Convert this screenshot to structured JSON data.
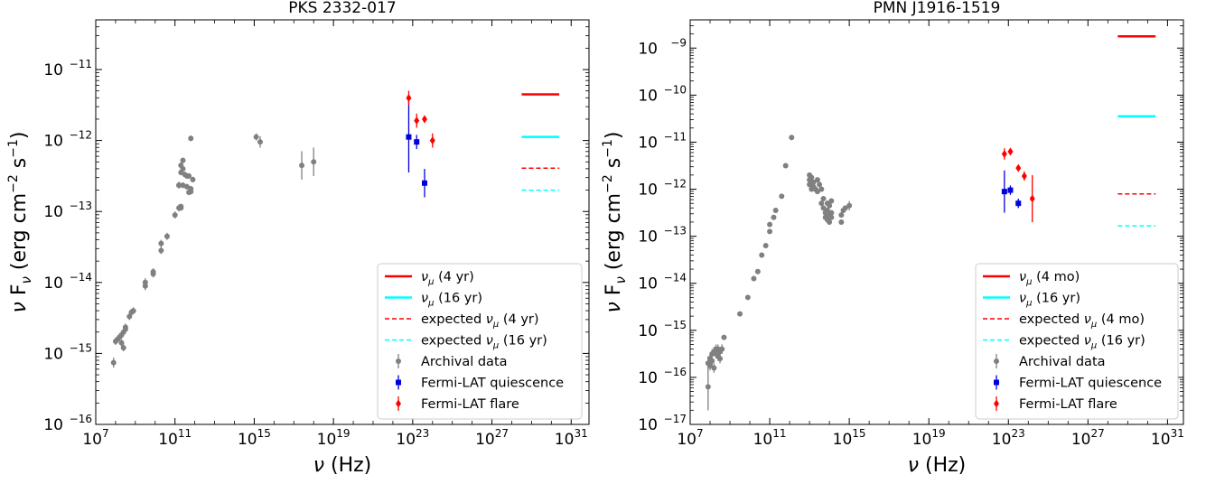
{
  "chart_data": [
    {
      "type": "scatter",
      "title": "PKS 2332-017",
      "xlabel": "ν (Hz)",
      "ylabel": "ν F_ν (erg cm^-2 s^-1)",
      "x_scale": "log",
      "y_scale": "log",
      "xlim_exp": [
        7,
        31.9
      ],
      "ylim_exp": [
        -16,
        -10.3
      ],
      "x_tick_exponents": [
        7,
        11,
        15,
        19,
        23,
        27,
        31
      ],
      "y_tick_exponents": [
        -16,
        -15,
        -14,
        -13,
        -12,
        -11
      ],
      "legend_position": "lower-right",
      "legend": [
        {
          "kind": "line",
          "color": "#ff0000",
          "dash": false,
          "pre": "",
          "nu": "ν",
          "sub": "μ",
          "post": " (4 yr)"
        },
        {
          "kind": "line",
          "color": "#00ffff",
          "dash": false,
          "pre": "",
          "nu": "ν",
          "sub": "μ",
          "post": " (16 yr)"
        },
        {
          "kind": "line",
          "color": "#ff0000",
          "dash": true,
          "pre": "expected ",
          "nu": "ν",
          "sub": "μ",
          "post": " (4 yr)"
        },
        {
          "kind": "line",
          "color": "#00ffff",
          "dash": true,
          "pre": "expected ",
          "nu": "ν",
          "sub": "μ",
          "post": " (16 yr)"
        },
        {
          "kind": "circle",
          "color": "#808080",
          "pre": "Archival data",
          "nu": "",
          "sub": "",
          "post": ""
        },
        {
          "kind": "square",
          "color": "#0000dd",
          "pre": "Fermi-LAT quiescence",
          "nu": "",
          "sub": "",
          "post": ""
        },
        {
          "kind": "diamond",
          "color": "#ff0000",
          "pre": "Fermi-LAT flare",
          "nu": "",
          "sub": "",
          "post": ""
        }
      ],
      "neutrino_levels": [
        {
          "name": "ν_μ (4 yr)",
          "logx_range": [
            28.5,
            30.4
          ],
          "logy": -11.35,
          "color": "#ff0000",
          "dash": false
        },
        {
          "name": "ν_μ (16 yr)",
          "logx_range": [
            28.5,
            30.4
          ],
          "logy": -11.95,
          "color": "#00ffff",
          "dash": false
        },
        {
          "name": "expected ν_μ (4 yr)",
          "logx_range": [
            28.5,
            30.4
          ],
          "logy": -12.39,
          "color": "#ff0000",
          "dash": true
        },
        {
          "name": "expected ν_μ (16 yr)",
          "logx_range": [
            28.5,
            30.4
          ],
          "logy": -12.7,
          "color": "#00ffff",
          "dash": true
        }
      ],
      "series": [
        {
          "name": "Archival data",
          "marker": "circle",
          "color": "#808080",
          "points": [
            [
              7.9,
              -15.13,
              0.07
            ],
            [
              8.0,
              -14.83,
              0.05
            ],
            [
              8.1,
              -14.8,
              0.05
            ],
            [
              8.2,
              -14.77,
              0.05
            ],
            [
              8.3,
              -14.74,
              0.05
            ],
            [
              8.3,
              -14.85,
              0.05
            ],
            [
              8.4,
              -14.7,
              0.05
            ],
            [
              8.5,
              -14.66,
              0.05
            ],
            [
              8.4,
              -14.92,
              0.05
            ],
            [
              8.5,
              -14.63,
              0.05
            ],
            [
              8.7,
              -14.48,
              0.05
            ],
            [
              8.9,
              -14.4,
              0.05
            ],
            [
              8.8,
              -14.42,
              0.05
            ],
            [
              9.5,
              -14.05,
              0.06
            ],
            [
              9.5,
              -14.0,
              0.06
            ],
            [
              9.9,
              -13.88,
              0.05
            ],
            [
              9.9,
              -13.85,
              0.05
            ],
            [
              10.3,
              -13.45,
              0.05
            ],
            [
              10.3,
              -13.55,
              0.05
            ],
            [
              10.6,
              -13.35,
              0.05
            ],
            [
              11.0,
              -13.05,
              0.05
            ],
            [
              11.2,
              -12.95,
              0.05
            ],
            [
              11.2,
              -12.63,
              0.05
            ],
            [
              11.3,
              -12.45,
              0.04
            ],
            [
              11.3,
              -12.35,
              0.04
            ],
            [
              11.4,
              -12.4,
              0.04
            ],
            [
              11.4,
              -12.28,
              0.04
            ],
            [
              11.5,
              -12.48,
              0.04
            ],
            [
              11.6,
              -12.5,
              0.04
            ],
            [
              11.7,
              -12.73,
              0.04
            ],
            [
              11.8,
              -12.68,
              0.04
            ],
            [
              11.2,
              -12.63,
              0.04
            ],
            [
              11.4,
              -12.63,
              0.04
            ],
            [
              11.6,
              -12.65,
              0.04
            ],
            [
              11.8,
              -12.72,
              0.04
            ],
            [
              11.3,
              -12.93,
              0.04
            ],
            [
              11.3,
              -12.95,
              0.04
            ],
            [
              11.8,
              -11.97,
              0.04
            ],
            [
              11.9,
              -12.55,
              0.04
            ],
            [
              11.7,
              -12.5,
              0.04
            ],
            [
              15.1,
              -11.95,
              0.05
            ],
            [
              15.3,
              -12.02,
              0.08
            ],
            [
              17.4,
              -12.35,
              0.2
            ],
            [
              18.0,
              -12.3,
              0.2
            ]
          ]
        },
        {
          "name": "Fermi-LAT quiescence",
          "marker": "square",
          "color": "#0000dd",
          "points": [
            [
              22.8,
              -11.95,
              0.5
            ],
            [
              23.2,
              -12.02,
              0.1
            ],
            [
              23.6,
              -12.6,
              0.2
            ]
          ]
        },
        {
          "name": "Fermi-LAT flare",
          "marker": "diamond",
          "color": "#ff0000",
          "points": [
            [
              22.8,
              -11.4,
              0.1
            ],
            [
              23.2,
              -11.72,
              0.1
            ],
            [
              23.6,
              -11.7,
              0.05
            ],
            [
              24.0,
              -12.0,
              0.1
            ]
          ]
        }
      ]
    },
    {
      "type": "scatter",
      "title": "PMN J1916-1519",
      "xlabel": "ν (Hz)",
      "ylabel": "ν F_ν (erg cm^-2 s^-1)",
      "x_scale": "log",
      "y_scale": "log",
      "xlim_exp": [
        7,
        31.8
      ],
      "ylim_exp": [
        -17,
        -8.4
      ],
      "x_tick_exponents": [
        7,
        11,
        15,
        19,
        23,
        27,
        31
      ],
      "y_tick_exponents": [
        -17,
        -16,
        -15,
        -14,
        -13,
        -12,
        -11,
        -10,
        -9
      ],
      "legend_position": "lower-right",
      "legend": [
        {
          "kind": "line",
          "color": "#ff0000",
          "dash": false,
          "pre": "",
          "nu": "ν",
          "sub": "μ",
          "post": " (4 mo)"
        },
        {
          "kind": "line",
          "color": "#00ffff",
          "dash": false,
          "pre": "",
          "nu": "ν",
          "sub": "μ",
          "post": " (16 yr)"
        },
        {
          "kind": "line",
          "color": "#ff0000",
          "dash": true,
          "pre": "expected ",
          "nu": "ν",
          "sub": "μ",
          "post": " (4 mo)"
        },
        {
          "kind": "line",
          "color": "#00ffff",
          "dash": true,
          "pre": "expected ",
          "nu": "ν",
          "sub": "μ",
          "post": " (16 yr)"
        },
        {
          "kind": "circle",
          "color": "#808080",
          "pre": "Archival data",
          "nu": "",
          "sub": "",
          "post": ""
        },
        {
          "kind": "square",
          "color": "#0000dd",
          "pre": "Fermi-LAT quiescence",
          "nu": "",
          "sub": "",
          "post": ""
        },
        {
          "kind": "diamond",
          "color": "#ff0000",
          "pre": "Fermi-LAT flare",
          "nu": "",
          "sub": "",
          "post": ""
        }
      ],
      "neutrino_levels": [
        {
          "name": "ν_μ (4 mo)",
          "logx_range": [
            28.5,
            30.4
          ],
          "logy": -8.75,
          "color": "#ff0000",
          "dash": false
        },
        {
          "name": "ν_μ (16 yr)",
          "logx_range": [
            28.5,
            30.4
          ],
          "logy": -10.45,
          "color": "#00ffff",
          "dash": false
        },
        {
          "name": "expected ν_μ (4 mo)",
          "logx_range": [
            28.5,
            30.4
          ],
          "logy": -12.1,
          "color": "#ff0000",
          "dash": true
        },
        {
          "name": "expected ν_μ (16 yr)",
          "logx_range": [
            28.5,
            30.4
          ],
          "logy": -12.78,
          "color": "#00ffff",
          "dash": true
        }
      ],
      "series": [
        {
          "name": "Archival data",
          "marker": "circle",
          "color": "#808080",
          "points": [
            [
              7.9,
              -16.2,
              0.5
            ],
            [
              7.9,
              -15.7,
              0.15
            ],
            [
              8.0,
              -15.6,
              0.1
            ],
            [
              8.0,
              -15.75,
              0.1
            ],
            [
              8.1,
              -15.5,
              0.1
            ],
            [
              8.1,
              -15.65,
              0.1
            ],
            [
              8.2,
              -15.45,
              0.1
            ],
            [
              8.2,
              -15.8,
              0.1
            ],
            [
              8.3,
              -15.5,
              0.1
            ],
            [
              8.3,
              -15.4,
              0.1
            ],
            [
              8.4,
              -15.55,
              0.1
            ],
            [
              8.4,
              -15.4,
              0.1
            ],
            [
              8.5,
              -15.6,
              0.1
            ],
            [
              8.5,
              -15.45,
              0.1
            ],
            [
              8.6,
              -15.4,
              0.1
            ],
            [
              8.7,
              -15.15,
              0.05
            ],
            [
              9.5,
              -14.65,
              0.05
            ],
            [
              9.9,
              -14.3,
              0.05
            ],
            [
              10.2,
              -13.9,
              0.05
            ],
            [
              10.4,
              -13.75,
              0.05
            ],
            [
              10.6,
              -13.4,
              0.05
            ],
            [
              10.8,
              -13.2,
              0.05
            ],
            [
              11.0,
              -12.9,
              0.05
            ],
            [
              11.0,
              -12.75,
              0.05
            ],
            [
              11.2,
              -12.6,
              0.05
            ],
            [
              11.3,
              -12.45,
              0.05
            ],
            [
              11.6,
              -12.15,
              0.05
            ],
            [
              11.8,
              -11.5,
              0.05
            ],
            [
              12.1,
              -10.9,
              0.05
            ],
            [
              13.0,
              -11.7,
              0.05
            ],
            [
              13.0,
              -11.8,
              0.05
            ],
            [
              13.0,
              -11.9,
              0.05
            ],
            [
              13.1,
              -12.0,
              0.05
            ],
            [
              13.1,
              -11.75,
              0.05
            ],
            [
              13.2,
              -11.85,
              0.05
            ],
            [
              13.2,
              -11.95,
              0.05
            ],
            [
              13.3,
              -12.0,
              0.05
            ],
            [
              13.4,
              -11.8,
              0.05
            ],
            [
              13.4,
              -12.05,
              0.05
            ],
            [
              13.5,
              -11.9,
              0.05
            ],
            [
              13.6,
              -12.0,
              0.05
            ],
            [
              13.6,
              -12.3,
              0.05
            ],
            [
              13.7,
              -12.2,
              0.05
            ],
            [
              13.7,
              -12.4,
              0.05
            ],
            [
              13.8,
              -12.5,
              0.05
            ],
            [
              13.8,
              -12.6,
              0.05
            ],
            [
              13.9,
              -12.3,
              0.05
            ],
            [
              13.9,
              -12.45,
              0.05
            ],
            [
              13.9,
              -12.65,
              0.05
            ],
            [
              14.0,
              -12.55,
              0.05
            ],
            [
              14.0,
              -12.35,
              0.05
            ],
            [
              14.0,
              -12.7,
              0.05
            ],
            [
              14.1,
              -12.5,
              0.05
            ],
            [
              14.1,
              -12.25,
              0.05
            ],
            [
              14.1,
              -12.6,
              0.05
            ],
            [
              14.6,
              -12.7,
              0.05
            ],
            [
              14.6,
              -12.55,
              0.05
            ],
            [
              14.7,
              -12.45,
              0.05
            ],
            [
              14.8,
              -12.4,
              0.05
            ],
            [
              15.0,
              -12.35,
              0.1
            ]
          ]
        },
        {
          "name": "Fermi-LAT quiescence",
          "marker": "square",
          "color": "#0000dd",
          "points": [
            [
              22.8,
              -12.05,
              0.45
            ],
            [
              23.1,
              -12.02,
              0.1
            ],
            [
              23.5,
              -12.3,
              0.1
            ]
          ]
        },
        {
          "name": "Fermi-LAT flare",
          "marker": "diamond",
          "color": "#ff0000",
          "points": [
            [
              22.8,
              -11.25,
              0.12
            ],
            [
              23.1,
              -11.2,
              0.06
            ],
            [
              23.5,
              -11.55,
              0.06
            ],
            [
              23.8,
              -11.72,
              0.1
            ],
            [
              24.2,
              -12.2,
              0.5
            ]
          ]
        }
      ]
    }
  ]
}
